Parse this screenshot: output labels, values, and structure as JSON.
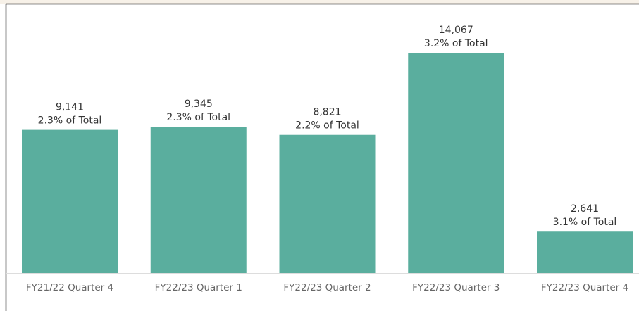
{
  "chart_data": {
    "type": "bar",
    "categories": [
      "FY21/22 Quarter 4",
      "FY22/23 Quarter 1",
      "FY22/23 Quarter 2",
      "FY22/23 Quarter 3",
      "FY22/23 Quarter 4"
    ],
    "values": [
      9141,
      9345,
      8821,
      14067,
      2641
    ],
    "value_labels": [
      "9,141",
      "9,345",
      "8,821",
      "14,067",
      "2,641"
    ],
    "percent_labels": [
      "2.3% of Total",
      "2.3% of Total",
      "2.2% of Total",
      "3.2% of Total",
      "3.1% of Total"
    ],
    "color": "#5aae9e"
  }
}
